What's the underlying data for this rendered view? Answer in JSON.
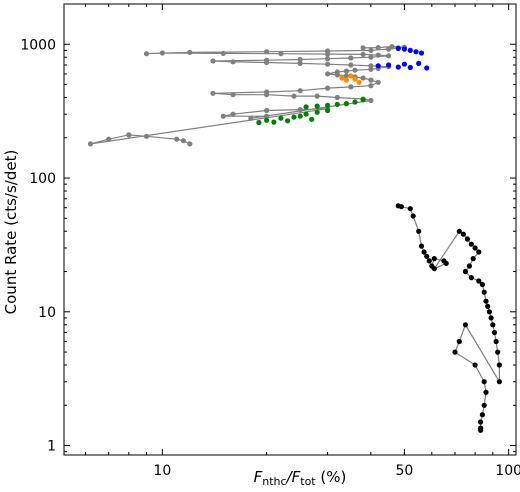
{
  "chart_data": {
    "type": "scatter",
    "title": "",
    "xlabel": {
      "main": "F",
      "sub1": "nthc",
      "slash": "/F",
      "sub2": "tot",
      "unit": " (%)"
    },
    "ylabel": "Count Rate (cts/s/det)",
    "xscale": "log",
    "yscale": "log",
    "xlim": [
      5.2,
      105
    ],
    "ylim": [
      0.85,
      2000
    ],
    "x_ticks": [
      {
        "value": 10,
        "label": "10"
      },
      {
        "value": 50,
        "label": "50"
      },
      {
        "value": 100,
        "label": "100"
      }
    ],
    "y_ticks": [
      {
        "value": 1,
        "label": "1"
      },
      {
        "value": 10,
        "label": "10"
      },
      {
        "value": 100,
        "label": "100"
      },
      {
        "value": 1000,
        "label": "1000"
      }
    ],
    "grid": false,
    "line_color": "#808080",
    "series": [
      {
        "color": "#808080",
        "connected": true,
        "points": [
          [
            12,
            180
          ],
          [
            11.5,
            190
          ],
          [
            11,
            195
          ],
          [
            9,
            205
          ],
          [
            8,
            210
          ],
          [
            7,
            195
          ],
          [
            6.2,
            180
          ],
          [
            30,
            330
          ],
          [
            25,
            325
          ],
          [
            20,
            320
          ],
          [
            16,
            300
          ],
          [
            15,
            290
          ],
          [
            20,
            290
          ],
          [
            18,
            280
          ],
          [
            40,
            380
          ],
          [
            38,
            390
          ],
          [
            32,
            400
          ],
          [
            28,
            410
          ],
          [
            24,
            410
          ],
          [
            20,
            420
          ],
          [
            16,
            420
          ],
          [
            14,
            430
          ],
          [
            20,
            440
          ],
          [
            25,
            450
          ],
          [
            30,
            470
          ],
          [
            35,
            480
          ],
          [
            40,
            490
          ],
          [
            42,
            520
          ],
          [
            40,
            540
          ],
          [
            38,
            560
          ],
          [
            36,
            570
          ],
          [
            34,
            580
          ],
          [
            32,
            590
          ],
          [
            30,
            600
          ],
          [
            32,
            620
          ],
          [
            34,
            630
          ],
          [
            36,
            640
          ],
          [
            40,
            650
          ],
          [
            42,
            660
          ],
          [
            45,
            680
          ],
          [
            40,
            690
          ],
          [
            35,
            700
          ],
          [
            30,
            710
          ],
          [
            25,
            720
          ],
          [
            20,
            730
          ],
          [
            16,
            740
          ],
          [
            14,
            750
          ],
          [
            20,
            760
          ],
          [
            25,
            770
          ],
          [
            30,
            780
          ],
          [
            35,
            790
          ],
          [
            40,
            800
          ],
          [
            45,
            820
          ],
          [
            42,
            830
          ],
          [
            38,
            840
          ],
          [
            30,
            845
          ],
          [
            22,
            850
          ],
          [
            15,
            855
          ],
          [
            10,
            860
          ],
          [
            9,
            850
          ],
          [
            12,
            870
          ],
          [
            20,
            880
          ],
          [
            30,
            890
          ],
          [
            40,
            900
          ],
          [
            45,
            920
          ],
          [
            48,
            940
          ],
          [
            50,
            950
          ],
          [
            46,
            960
          ],
          [
            42,
            945
          ],
          [
            38,
            940
          ]
        ]
      },
      {
        "color": "#0000ff",
        "connected": false,
        "points": [
          [
            48,
            930
          ],
          [
            50,
            920
          ],
          [
            52,
            900
          ],
          [
            54,
            880
          ],
          [
            56,
            860
          ],
          [
            55,
            720
          ],
          [
            50,
            710
          ],
          [
            45,
            700
          ],
          [
            42,
            690
          ],
          [
            48,
            675
          ],
          [
            52,
            670
          ],
          [
            58,
            665
          ]
        ]
      },
      {
        "color": "#ff8c00",
        "connected": false,
        "points": [
          [
            33,
            560
          ],
          [
            34,
            540
          ],
          [
            35,
            580
          ],
          [
            36,
            550
          ],
          [
            37,
            520
          ]
        ]
      },
      {
        "color": "#008000",
        "connected": false,
        "points": [
          [
            26,
            340
          ],
          [
            28,
            345
          ],
          [
            30,
            350
          ],
          [
            32,
            355
          ],
          [
            34,
            360
          ],
          [
            36,
            370
          ],
          [
            38,
            385
          ],
          [
            20,
            270
          ],
          [
            22,
            280
          ],
          [
            24,
            285
          ],
          [
            25,
            290
          ],
          [
            26,
            300
          ],
          [
            28,
            310
          ],
          [
            30,
            320
          ],
          [
            19,
            260
          ],
          [
            21,
            262
          ],
          [
            23,
            268
          ],
          [
            27,
            275
          ]
        ]
      },
      {
        "color": "#000000",
        "connected": true,
        "points": [
          [
            48,
            62
          ],
          [
            49,
            61
          ],
          [
            52,
            59
          ],
          [
            53,
            52
          ],
          [
            55,
            40
          ],
          [
            56,
            31
          ],
          [
            57,
            28
          ],
          [
            58,
            26
          ],
          [
            59,
            24
          ],
          [
            60,
            22
          ],
          [
            61,
            25
          ],
          [
            65,
            24
          ],
          [
            66,
            23
          ],
          [
            61,
            21
          ],
          [
            72,
            40
          ],
          [
            74,
            38
          ],
          [
            76,
            35
          ],
          [
            78,
            32
          ],
          [
            80,
            30
          ],
          [
            82,
            28
          ],
          [
            79,
            25
          ],
          [
            77,
            22
          ],
          [
            75,
            20
          ],
          [
            78,
            18
          ],
          [
            82,
            17
          ],
          [
            84,
            16
          ],
          [
            85,
            14
          ],
          [
            86,
            12
          ],
          [
            87,
            11
          ],
          [
            88,
            10
          ],
          [
            89,
            9
          ],
          [
            90,
            8
          ],
          [
            91,
            7
          ],
          [
            92,
            6
          ],
          [
            93,
            5
          ],
          [
            94,
            4
          ],
          [
            94,
            3
          ],
          [
            75,
            8
          ],
          [
            72,
            6
          ],
          [
            70,
            5
          ],
          [
            80,
            4
          ],
          [
            85,
            3
          ],
          [
            86,
            2.5
          ],
          [
            85,
            2
          ],
          [
            84,
            1.7
          ],
          [
            83,
            1.5
          ],
          [
            83,
            1.35
          ],
          [
            83,
            1.3
          ]
        ]
      }
    ]
  }
}
